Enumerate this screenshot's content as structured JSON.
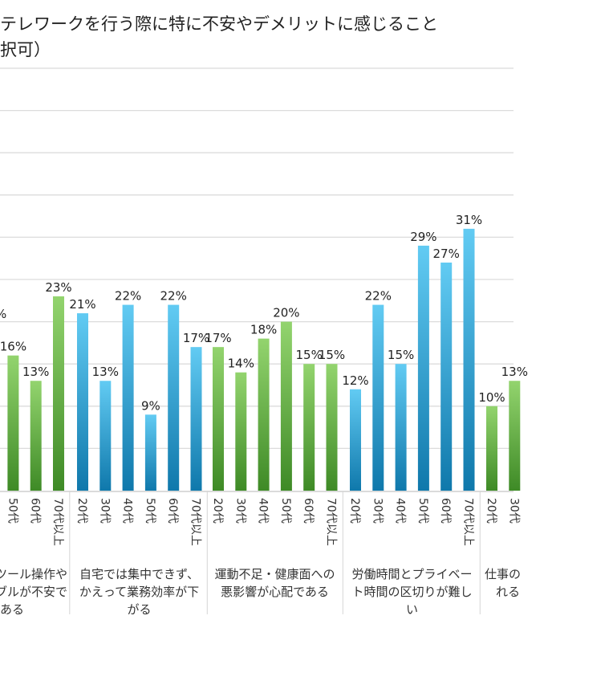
{
  "title": {
    "line1": "テレワークを行う際に特に不安やデメリットに感じること",
    "line2": "択可）"
  },
  "chart_data": {
    "type": "bar",
    "ylim": [
      0,
      50
    ],
    "grid": true,
    "unit": "%",
    "colors": {
      "green_top": "#93d46e",
      "green_bottom": "#3e8a26",
      "blue_top": "#62cbf3",
      "blue_bottom": "#0f78ab"
    },
    "partial_left_label": "%",
    "groups": [
      {
        "label_lines": [
          "ツール操作や",
          "ブルが不安で",
          "ある"
        ],
        "color": "green",
        "categories": [
          "50代",
          "60代",
          "70代以上"
        ],
        "values": [
          16,
          13,
          23
        ]
      },
      {
        "label_lines": [
          "自宅では集中できず、",
          "かえって業務効率が下",
          "がる"
        ],
        "color": "blue",
        "categories": [
          "20代",
          "30代",
          "40代",
          "50代",
          "60代",
          "70代以上"
        ],
        "values": [
          21,
          13,
          22,
          9,
          22,
          17
        ]
      },
      {
        "label_lines": [
          "運動不足・健康面への",
          "悪影響が心配である"
        ],
        "color": "green",
        "categories": [
          "20代",
          "30代",
          "40代",
          "50代",
          "60代",
          "70代以上"
        ],
        "values": [
          17,
          14,
          18,
          20,
          15,
          15
        ]
      },
      {
        "label_lines": [
          "労働時間とプライベー",
          "ト時間の区切りが難し",
          "い"
        ],
        "color": "blue",
        "categories": [
          "20代",
          "30代",
          "40代",
          "50代",
          "60代",
          "70代以上"
        ],
        "values": [
          12,
          22,
          15,
          29,
          27,
          31
        ]
      },
      {
        "label_lines": [
          "仕事の",
          "れる"
        ],
        "color": "green",
        "categories": [
          "20代",
          "30代"
        ],
        "values": [
          10,
          13
        ]
      }
    ]
  }
}
